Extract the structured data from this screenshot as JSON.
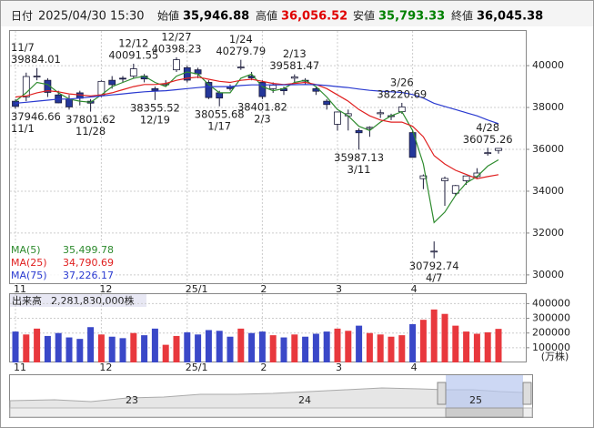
{
  "header": {
    "date_label": "日付",
    "date": "2025/04/30 15:30",
    "fields": [
      {
        "name": "始値",
        "value": "35,946.88",
        "color": "#000000"
      },
      {
        "name": "高値",
        "value": "36,056.52",
        "color": "#e00000"
      },
      {
        "name": "安値",
        "value": "35,793.33",
        "color": "#008000"
      },
      {
        "name": "終値",
        "value": "36,045.38",
        "color": "#000000"
      }
    ]
  },
  "chart_data": {
    "type": "candlestick",
    "categories": [
      "11",
      null,
      null,
      null,
      null,
      null,
      null,
      null,
      "12",
      null,
      null,
      null,
      null,
      null,
      null,
      null,
      "25/1",
      null,
      null,
      null,
      null,
      null,
      null,
      "2",
      null,
      null,
      null,
      null,
      null,
      null,
      "3",
      null,
      null,
      null,
      null,
      null,
      null,
      "4",
      null,
      null,
      null,
      null,
      null,
      null,
      null,
      null
    ],
    "open": [
      38300,
      38500,
      39500,
      39300,
      38600,
      38400,
      38700,
      38300,
      38600,
      39300,
      39400,
      39500,
      39500,
      38900,
      39100,
      39800,
      39900,
      39800,
      39200,
      38700,
      39000,
      39900,
      39500,
      39200,
      38900,
      38900,
      39400,
      39300,
      38900,
      38300,
      37200,
      37600,
      36900,
      37000,
      37700,
      37600,
      37800,
      36800,
      34600,
      31100,
      34500,
      33900,
      34500,
      34700,
      35800,
      35946.88
    ],
    "high": [
      38400,
      39664,
      39884.01,
      39400,
      38800,
      38600,
      38800,
      38400,
      39300,
      39500,
      39500,
      40091.55,
      39600,
      39000,
      39300,
      40398.23,
      40000,
      39900,
      39300,
      38800,
      39100,
      40279.79,
      39700,
      39300,
      39200,
      39000,
      39581.47,
      39400,
      39000,
      38400,
      37800,
      37900,
      37000,
      37100,
      37900,
      37700,
      38220.69,
      36900,
      34800,
      31600,
      34700,
      34300,
      34700,
      35100,
      36075.26,
      36056.52
    ],
    "low": [
      37946.66,
      38300,
      39300,
      38500,
      38200,
      37900,
      38100,
      37801.62,
      38500,
      38900,
      39200,
      39400,
      39200,
      38355.52,
      39000,
      39700,
      39200,
      39400,
      38400,
      38055.68,
      38800,
      39800,
      39300,
      38401.82,
      38700,
      38600,
      39200,
      39100,
      38600,
      37900,
      36900,
      36900,
      35987.13,
      36600,
      37500,
      37400,
      37700,
      35600,
      34100,
      30792.74,
      33300,
      33800,
      34300,
      34600,
      35700,
      35793.33
    ],
    "close": [
      38053,
      39480,
      39500,
      38721,
      38220,
      38026,
      38442,
      38208,
      39248,
      39091,
      39372,
      39849,
      39365,
      38813,
      39130,
      40281,
      39307,
      39605,
      38474,
      38451,
      38902,
      39931,
      39414,
      38520,
      39066,
      38801,
      39461,
      39270,
      38776,
      38142,
      37785,
      37704,
      36793,
      37053,
      37751,
      37608,
      38027,
      35617,
      34735,
      31136,
      34609,
      34267,
      34730,
      34868,
      35840,
      36045.38
    ],
    "candle_colors": {
      "up": "#ffffff",
      "down": "#24379a",
      "edge": "#1b1b3a"
    },
    "ylim": [
      29560,
      41700
    ],
    "yticks": [
      30000,
      32000,
      34000,
      36000,
      38000,
      40000
    ],
    "grid": true,
    "annotations": [
      {
        "label": "11/7",
        "value": 39884.01
      },
      {
        "label": "12/12",
        "value": 40091.55
      },
      {
        "label": "12/27",
        "value": 40398.23
      },
      {
        "label": "1/24",
        "value": 40279.79
      },
      {
        "label": "2/13",
        "value": 39581.47
      },
      {
        "label": "3/26",
        "value": 38220.69
      },
      {
        "label": "4/28",
        "value": 36075.26
      },
      {
        "label": "11/1",
        "value": 37946.66
      },
      {
        "label": "11/28",
        "value": 37801.62
      },
      {
        "label": "12/19",
        "value": 38355.52
      },
      {
        "label": "1/17",
        "value": 38055.68
      },
      {
        "label": "2/3",
        "value": 38401.82
      },
      {
        "label": "3/11",
        "value": 35987.13
      },
      {
        "label": "4/7",
        "value": 30792.74
      }
    ],
    "ma": [
      {
        "name": "MA(5)",
        "color": "#2e8b2e",
        "last_label": "35,499.78",
        "values": [
          38300,
          38700,
          39200,
          39100,
          38700,
          38400,
          38300,
          38250,
          38600,
          39000,
          39200,
          39400,
          39500,
          39200,
          39000,
          39500,
          39700,
          39600,
          39100,
          38700,
          38700,
          39400,
          39600,
          39000,
          38800,
          38900,
          39200,
          39300,
          39000,
          38500,
          37900,
          37600,
          37100,
          36900,
          37300,
          37600,
          37800,
          36900,
          35300,
          32500,
          33000,
          33800,
          34400,
          34700,
          35200,
          35499.78
        ]
      },
      {
        "name": "MA(25)",
        "color": "#e02020",
        "last_label": "34,790.69",
        "values": [
          38500,
          38550,
          38700,
          38800,
          38750,
          38650,
          38600,
          38550,
          38600,
          38700,
          38850,
          39000,
          39100,
          39100,
          39150,
          39300,
          39400,
          39450,
          39350,
          39250,
          39200,
          39300,
          39350,
          39250,
          39150,
          39100,
          39150,
          39200,
          39100,
          38900,
          38600,
          38300,
          37900,
          37600,
          37400,
          37300,
          37300,
          37100,
          36600,
          35700,
          35300,
          35000,
          34800,
          34600,
          34700,
          34790.69
        ]
      },
      {
        "name": "MA(75)",
        "color": "#2a3ad0",
        "last_label": "37,226.17",
        "values": [
          38200,
          38250,
          38300,
          38350,
          38400,
          38400,
          38450,
          38500,
          38550,
          38600,
          38650,
          38700,
          38750,
          38780,
          38800,
          38850,
          38900,
          38950,
          39000,
          39000,
          39000,
          39050,
          39080,
          39080,
          39080,
          39080,
          39090,
          39100,
          39090,
          39050,
          39000,
          38950,
          38880,
          38820,
          38780,
          38750,
          38720,
          38620,
          38450,
          38200,
          38050,
          37900,
          37750,
          37600,
          37400,
          37226.17
        ]
      }
    ],
    "volume": {
      "title": "出来高",
      "total_label": "2,281,830,000株",
      "unit": "(万株)",
      "colors": {
        "up": "#e8383d",
        "down": "#3a48c8"
      },
      "ylim": [
        0,
        452000
      ],
      "yticks": [
        100000,
        200000,
        300000,
        400000
      ],
      "values": [
        210000,
        190000,
        230000,
        180000,
        200000,
        170000,
        160000,
        240000,
        190000,
        175000,
        165000,
        200000,
        185000,
        230000,
        120000,
        180000,
        205000,
        190000,
        220000,
        215000,
        175000,
        230000,
        200000,
        210000,
        185000,
        170000,
        190000,
        175000,
        195000,
        210000,
        230000,
        215000,
        250000,
        200000,
        190000,
        175000,
        185000,
        260000,
        290000,
        360000,
        330000,
        250000,
        210000,
        195000,
        205000,
        228183
      ]
    }
  },
  "navigator": {
    "labels": [
      "23",
      "24",
      "25"
    ]
  }
}
